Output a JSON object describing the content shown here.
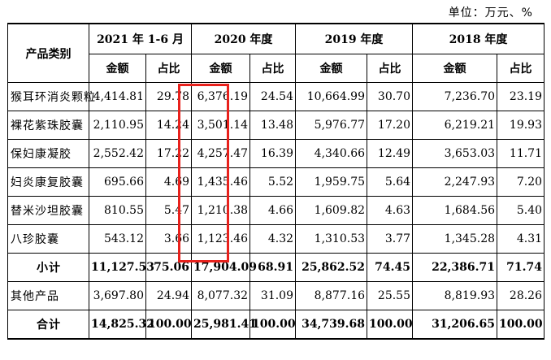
{
  "unit_label": "单位：万元、%",
  "header": {
    "category": "产品类别",
    "periods": [
      "2021 年 1-6 月",
      "2020 年度",
      "2019 年度",
      "2018 年度"
    ],
    "amount": "金额",
    "ratio": "占比"
  },
  "rows": [
    {
      "name": "猴耳环消炎颗粒",
      "v": [
        "4,414.81",
        "29.78",
        "6,376.19",
        "24.54",
        "10,664.99",
        "30.70",
        "7,236.70",
        "23.19"
      ]
    },
    {
      "name": "裸花紫珠胶囊",
      "v": [
        "2,110.95",
        "14.24",
        "3,501.14",
        "13.48",
        "5,976.77",
        "17.20",
        "6,219.21",
        "19.93"
      ]
    },
    {
      "name": "保妇康凝胶",
      "v": [
        "2,552.42",
        "17.22",
        "4,257.47",
        "16.39",
        "4,340.66",
        "12.49",
        "3,653.03",
        "11.71"
      ]
    },
    {
      "name": "妇炎康复胶囊",
      "v": [
        "695.66",
        "4.69",
        "1,435.46",
        "5.52",
        "1,959.75",
        "5.64",
        "2,247.93",
        "7.20"
      ]
    },
    {
      "name": "替米沙坦胶囊",
      "v": [
        "810.55",
        "5.47",
        "1,210.38",
        "4.66",
        "1,609.82",
        "4.63",
        "1,684.56",
        "5.40"
      ]
    },
    {
      "name": "八珍胶囊",
      "v": [
        "543.12",
        "3.66",
        "1,123.46",
        "4.32",
        "1,310.53",
        "3.77",
        "1,345.28",
        "4.31"
      ]
    },
    {
      "name": "小计",
      "v": [
        "11,127.53",
        "75.06",
        "17,904.09",
        "68.91",
        "25,862.52",
        "74.45",
        "22,386.71",
        "71.74"
      ]
    },
    {
      "name": "其他产品",
      "v": [
        "3,697.80",
        "24.94",
        "8,077.32",
        "31.09",
        "8,877.16",
        "25.55",
        "8,819.93",
        "28.26"
      ]
    },
    {
      "name": "合计",
      "v": [
        "14,825.32",
        "100.00",
        "25,981.41",
        "100.00",
        "34,739.68",
        "100.00",
        "31,206.65",
        "100.00"
      ]
    }
  ],
  "highlight_color": "#e8211c"
}
